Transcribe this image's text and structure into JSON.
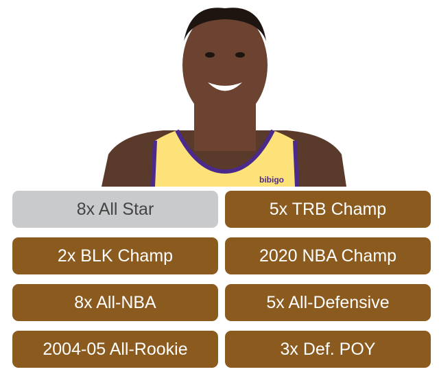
{
  "photo": {
    "jersey_text": "bibigo",
    "jersey_color": "#FDE27A",
    "trim_color": "#4B2A8C"
  },
  "accent_color": "#8B5A1E",
  "selected_color": "#C9CACC",
  "options": [
    {
      "label": "8x All Star",
      "selected": true
    },
    {
      "label": "5x TRB Champ",
      "selected": false
    },
    {
      "label": "2x BLK Champ",
      "selected": false
    },
    {
      "label": "2020 NBA Champ",
      "selected": false
    },
    {
      "label": "8x All-NBA",
      "selected": false
    },
    {
      "label": "5x All-Defensive",
      "selected": false
    },
    {
      "label": "2004-05 All-Rookie",
      "selected": false
    },
    {
      "label": "3x Def. POY",
      "selected": false
    }
  ]
}
